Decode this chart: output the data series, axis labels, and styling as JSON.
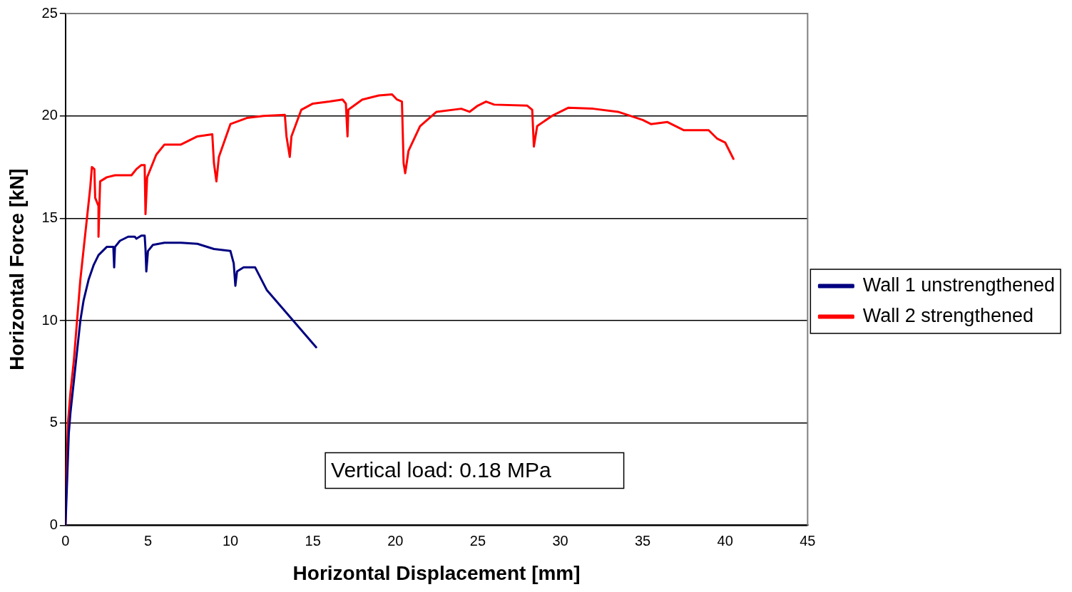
{
  "chart_data": {
    "type": "line",
    "xlabel": "Horizontal Displacement [mm]",
    "ylabel": "Horizontal Force [kN]",
    "xlim": [
      0,
      45
    ],
    "xticks": [
      0,
      5,
      10,
      15,
      20,
      25,
      30,
      35,
      40,
      45
    ],
    "ylim": [
      0,
      25
    ],
    "yticks": [
      0,
      5,
      10,
      15,
      20,
      25
    ],
    "grid": "y",
    "legend": "right",
    "marker": "none",
    "line_style": "solid",
    "annotations": [
      "Vertical load: 0.18 MPa"
    ],
    "series": [
      {
        "name": "Wall 1 unstrengthened",
        "color": "#000080",
        "x": [
          0,
          0.2,
          0.3,
          0.5,
          0.7,
          0.9,
          1.1,
          1.4,
          1.7,
          2.0,
          2.5,
          2.9,
          2.95,
          3.0,
          3.3,
          3.8,
          4.2,
          4.3,
          4.6,
          4.8,
          4.85,
          4.9,
          5.0,
          5.3,
          6,
          7,
          8,
          9,
          10,
          10.2,
          10.3,
          10.4,
          10.8,
          11.5,
          12.2,
          15.2
        ],
        "values": [
          0,
          4.5,
          5.5,
          7,
          8.5,
          10,
          11,
          12,
          12.7,
          13.2,
          13.6,
          13.6,
          12.6,
          13.6,
          13.9,
          14.1,
          14.1,
          14.0,
          14.15,
          14.15,
          13.5,
          12.4,
          13.4,
          13.7,
          13.8,
          13.8,
          13.75,
          13.5,
          13.4,
          12.8,
          11.7,
          12.4,
          12.6,
          12.6,
          11.5,
          8.7
        ]
      },
      {
        "name": "Wall 2 strengthened",
        "color": "#ff0000",
        "x": [
          0,
          0.05,
          0.15,
          0.3,
          0.5,
          0.7,
          0.9,
          1.1,
          1.3,
          1.5,
          1.6,
          1.75,
          1.8,
          2.0,
          2.0,
          2.1,
          2.5,
          3,
          4,
          4.3,
          4.6,
          4.8,
          4.85,
          4.95,
          5.5,
          6,
          7,
          8,
          8.9,
          9.0,
          9.15,
          9.3,
          10,
          11,
          12,
          13.3,
          13.4,
          13.6,
          13.7,
          14.3,
          15,
          16,
          16.8,
          17.0,
          17.1,
          17.15,
          18,
          19,
          19.8,
          20.1,
          20.4,
          20.5,
          20.6,
          20.8,
          21.5,
          22.5,
          24,
          24.5,
          25,
          25.5,
          26,
          28,
          28.3,
          28.4,
          28.6,
          29.5,
          30.5,
          32,
          33.5,
          35,
          35.5,
          36.5,
          37.5,
          39,
          39.5,
          40,
          40.5
        ],
        "values": [
          0,
          2,
          5,
          6.5,
          8,
          10,
          12,
          13.5,
          15,
          16.5,
          17.5,
          17.4,
          16,
          15.6,
          14.1,
          16.8,
          17.0,
          17.1,
          17.1,
          17.4,
          17.6,
          17.6,
          15.2,
          17,
          18.1,
          18.6,
          18.6,
          19.0,
          19.1,
          17.7,
          16.8,
          18,
          19.6,
          19.9,
          20,
          20.05,
          19,
          18,
          19.0,
          20.3,
          20.6,
          20.7,
          20.8,
          20.6,
          19.0,
          20.3,
          20.8,
          21.0,
          21.05,
          20.8,
          20.7,
          17.7,
          17.2,
          18.3,
          19.5,
          20.2,
          20.35,
          20.2,
          20.5,
          20.7,
          20.55,
          20.5,
          20.3,
          18.5,
          19.5,
          20.0,
          20.4,
          20.35,
          20.2,
          19.8,
          19.6,
          19.7,
          19.3,
          19.3,
          18.9,
          18.7,
          17.9
        ]
      }
    ]
  }
}
